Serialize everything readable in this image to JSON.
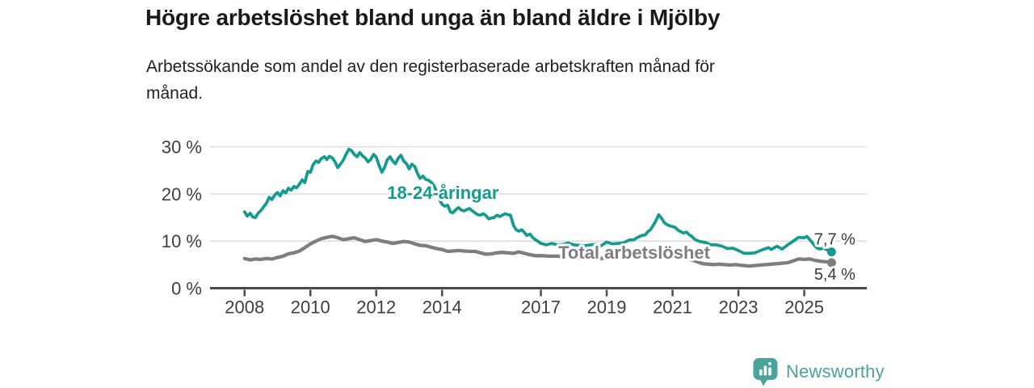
{
  "chart_data": {
    "type": "line",
    "title": "Högre arbetslöshet bland unga än bland äldre i Mjölby",
    "subtitle_lines": [
      "Arbetssökande som andel av den registerbaserade arbetskraften månad för",
      "månad."
    ],
    "xlim": [
      2007.0,
      2026.9
    ],
    "ylim": [
      0,
      32
    ],
    "grid": true,
    "x_ticks": [
      2008,
      2010,
      2012,
      2014,
      2017,
      2019,
      2021,
      2023,
      2025
    ],
    "y_ticks": [
      {
        "value": 0,
        "label": "0 %"
      },
      {
        "value": 10,
        "label": "10 %"
      },
      {
        "value": 20,
        "label": "20 %"
      },
      {
        "value": 30,
        "label": "30 %"
      }
    ],
    "colors": {
      "axis": "#4a4a4a",
      "grid": "#dcdcdc",
      "tick_text": "#3f3f3f",
      "value_text": "#3a3a3a"
    },
    "series": [
      {
        "id": "total",
        "name": "Total arbetslöshet",
        "color": "#7e7e7e",
        "end_value_label": "5,4 %",
        "value_label_position": "below",
        "label_at": [
          2017.53,
          6.3
        ],
        "points": [
          [
            2008.0,
            6.3
          ],
          [
            2008.17,
            6.0
          ],
          [
            2008.33,
            6.2
          ],
          [
            2008.5,
            6.1
          ],
          [
            2008.67,
            6.3
          ],
          [
            2008.83,
            6.2
          ],
          [
            2009.0,
            6.5
          ],
          [
            2009.17,
            6.8
          ],
          [
            2009.33,
            7.3
          ],
          [
            2009.5,
            7.5
          ],
          [
            2009.67,
            7.9
          ],
          [
            2009.83,
            8.6
          ],
          [
            2010.0,
            9.4
          ],
          [
            2010.17,
            10.0
          ],
          [
            2010.33,
            10.5
          ],
          [
            2010.5,
            10.8
          ],
          [
            2010.67,
            11.0
          ],
          [
            2010.83,
            10.7
          ],
          [
            2011.0,
            10.3
          ],
          [
            2011.17,
            10.5
          ],
          [
            2011.33,
            10.7
          ],
          [
            2011.5,
            10.3
          ],
          [
            2011.67,
            9.9
          ],
          [
            2011.83,
            10.1
          ],
          [
            2012.0,
            10.3
          ],
          [
            2012.17,
            10.0
          ],
          [
            2012.33,
            9.8
          ],
          [
            2012.5,
            9.5
          ],
          [
            2012.67,
            9.7
          ],
          [
            2012.83,
            9.9
          ],
          [
            2013.0,
            9.8
          ],
          [
            2013.17,
            9.4
          ],
          [
            2013.33,
            9.1
          ],
          [
            2013.5,
            9.0
          ],
          [
            2013.67,
            8.7
          ],
          [
            2013.83,
            8.4
          ],
          [
            2014.0,
            8.2
          ],
          [
            2014.17,
            7.8
          ],
          [
            2014.33,
            7.9
          ],
          [
            2014.5,
            8.0
          ],
          [
            2014.67,
            7.9
          ],
          [
            2014.83,
            7.8
          ],
          [
            2015.0,
            7.8
          ],
          [
            2015.17,
            7.5
          ],
          [
            2015.33,
            7.2
          ],
          [
            2015.5,
            7.3
          ],
          [
            2015.67,
            7.5
          ],
          [
            2015.83,
            7.6
          ],
          [
            2016.0,
            7.5
          ],
          [
            2016.17,
            7.4
          ],
          [
            2016.33,
            7.7
          ],
          [
            2016.5,
            7.4
          ],
          [
            2016.67,
            7.1
          ],
          [
            2016.83,
            6.9
          ],
          [
            2017.0,
            6.9
          ],
          [
            2017.25,
            6.8
          ],
          [
            2017.5,
            6.8
          ],
          [
            2017.75,
            6.6
          ],
          [
            2018.0,
            6.5
          ],
          [
            2018.25,
            6.3
          ],
          [
            2018.5,
            6.2
          ],
          [
            2018.75,
            6.3
          ],
          [
            2019.0,
            6.4
          ],
          [
            2019.25,
            6.3
          ],
          [
            2019.5,
            6.4
          ],
          [
            2019.75,
            6.5
          ],
          [
            2020.0,
            6.8
          ],
          [
            2020.25,
            7.3
          ],
          [
            2020.5,
            7.8
          ],
          [
            2020.75,
            7.6
          ],
          [
            2021.0,
            7.3
          ],
          [
            2021.25,
            6.8
          ],
          [
            2021.5,
            6.2
          ],
          [
            2021.75,
            5.6
          ],
          [
            2021.92,
            5.2
          ],
          [
            2022.08,
            5.1
          ],
          [
            2022.25,
            5.0
          ],
          [
            2022.42,
            5.1
          ],
          [
            2022.58,
            5.0
          ],
          [
            2022.75,
            4.9
          ],
          [
            2022.92,
            5.0
          ],
          [
            2023.0,
            4.9
          ],
          [
            2023.17,
            4.8
          ],
          [
            2023.33,
            4.7
          ],
          [
            2023.5,
            4.8
          ],
          [
            2023.67,
            4.9
          ],
          [
            2023.83,
            5.0
          ],
          [
            2024.0,
            5.1
          ],
          [
            2024.17,
            5.2
          ],
          [
            2024.33,
            5.3
          ],
          [
            2024.5,
            5.4
          ],
          [
            2024.67,
            5.8
          ],
          [
            2024.83,
            6.2
          ],
          [
            2025.0,
            6.1
          ],
          [
            2025.17,
            6.2
          ],
          [
            2025.33,
            5.9
          ],
          [
            2025.5,
            5.7
          ],
          [
            2025.67,
            5.6
          ],
          [
            2025.83,
            5.4
          ]
        ]
      },
      {
        "id": "youth",
        "name": "18-24-åringar",
        "color": "#129b8e",
        "end_value_label": "7,7 %",
        "value_label_position": "above",
        "label_at": [
          2012.33,
          19.0
        ],
        "points": [
          [
            2008.0,
            16.2
          ],
          [
            2008.08,
            15.3
          ],
          [
            2008.17,
            15.9
          ],
          [
            2008.25,
            15.1
          ],
          [
            2008.33,
            15.0
          ],
          [
            2008.42,
            16.0
          ],
          [
            2008.5,
            16.5
          ],
          [
            2008.58,
            17.3
          ],
          [
            2008.67,
            18.1
          ],
          [
            2008.75,
            19.3
          ],
          [
            2008.83,
            18.8
          ],
          [
            2008.92,
            19.8
          ],
          [
            2009.0,
            20.3
          ],
          [
            2009.08,
            19.6
          ],
          [
            2009.17,
            20.7
          ],
          [
            2009.25,
            20.2
          ],
          [
            2009.33,
            21.2
          ],
          [
            2009.42,
            20.8
          ],
          [
            2009.5,
            21.6
          ],
          [
            2009.58,
            21.3
          ],
          [
            2009.67,
            22.1
          ],
          [
            2009.75,
            23.0
          ],
          [
            2009.83,
            22.4
          ],
          [
            2009.92,
            24.8
          ],
          [
            2010.0,
            24.6
          ],
          [
            2010.08,
            26.2
          ],
          [
            2010.17,
            27.0
          ],
          [
            2010.25,
            26.7
          ],
          [
            2010.33,
            27.5
          ],
          [
            2010.42,
            27.9
          ],
          [
            2010.5,
            27.3
          ],
          [
            2010.58,
            28.0
          ],
          [
            2010.67,
            27.6
          ],
          [
            2010.75,
            26.8
          ],
          [
            2010.83,
            25.6
          ],
          [
            2010.92,
            26.4
          ],
          [
            2011.0,
            27.2
          ],
          [
            2011.08,
            28.4
          ],
          [
            2011.17,
            29.5
          ],
          [
            2011.25,
            29.2
          ],
          [
            2011.33,
            28.4
          ],
          [
            2011.42,
            27.9
          ],
          [
            2011.5,
            28.8
          ],
          [
            2011.58,
            28.1
          ],
          [
            2011.67,
            27.6
          ],
          [
            2011.75,
            26.8
          ],
          [
            2011.83,
            27.3
          ],
          [
            2011.92,
            28.4
          ],
          [
            2012.0,
            27.8
          ],
          [
            2012.08,
            26.2
          ],
          [
            2012.17,
            24.6
          ],
          [
            2012.25,
            25.6
          ],
          [
            2012.33,
            27.2
          ],
          [
            2012.42,
            27.9
          ],
          [
            2012.5,
            27.0
          ],
          [
            2012.58,
            26.4
          ],
          [
            2012.67,
            27.6
          ],
          [
            2012.75,
            28.2
          ],
          [
            2012.83,
            27.0
          ],
          [
            2012.92,
            26.4
          ],
          [
            2013.0,
            25.3
          ],
          [
            2013.08,
            26.3
          ],
          [
            2013.17,
            25.8
          ],
          [
            2013.25,
            24.4
          ],
          [
            2013.33,
            23.3
          ],
          [
            2013.42,
            23.8
          ],
          [
            2013.5,
            23.1
          ],
          [
            2013.58,
            22.9
          ],
          [
            2013.67,
            22.5
          ],
          [
            2013.75,
            21.8
          ],
          [
            2013.83,
            20.5
          ],
          [
            2013.92,
            18.8
          ],
          [
            2014.0,
            17.8
          ],
          [
            2014.08,
            17.4
          ],
          [
            2014.17,
            17.6
          ],
          [
            2014.25,
            16.2
          ],
          [
            2014.33,
            16.0
          ],
          [
            2014.42,
            16.7
          ],
          [
            2014.5,
            17.1
          ],
          [
            2014.58,
            16.6
          ],
          [
            2014.67,
            16.4
          ],
          [
            2014.75,
            16.7
          ],
          [
            2014.83,
            16.9
          ],
          [
            2014.92,
            16.4
          ],
          [
            2015.0,
            16.0
          ],
          [
            2015.08,
            15.6
          ],
          [
            2015.17,
            15.5
          ],
          [
            2015.25,
            15.8
          ],
          [
            2015.33,
            15.4
          ],
          [
            2015.42,
            14.7
          ],
          [
            2015.5,
            14.9
          ],
          [
            2015.58,
            15.0
          ],
          [
            2015.67,
            15.5
          ],
          [
            2015.75,
            15.2
          ],
          [
            2015.83,
            15.5
          ],
          [
            2015.92,
            15.8
          ],
          [
            2016.0,
            15.6
          ],
          [
            2016.08,
            15.5
          ],
          [
            2016.17,
            13.3
          ],
          [
            2016.25,
            12.4
          ],
          [
            2016.33,
            12.1
          ],
          [
            2016.42,
            12.4
          ],
          [
            2016.5,
            11.8
          ],
          [
            2016.58,
            11.2
          ],
          [
            2016.67,
            11.5
          ],
          [
            2016.75,
            10.8
          ],
          [
            2016.83,
            10.3
          ],
          [
            2016.92,
            9.9
          ],
          [
            2017.0,
            9.5
          ],
          [
            2017.17,
            9.2
          ],
          [
            2017.33,
            9.5
          ],
          [
            2017.5,
            9.2
          ],
          [
            2017.67,
            9.3
          ],
          [
            2017.83,
            9.6
          ],
          [
            2018.0,
            9.2
          ],
          [
            2018.17,
            9.1
          ],
          [
            2018.33,
            9.0
          ],
          [
            2018.5,
            9.2
          ],
          [
            2018.67,
            9.3
          ],
          [
            2018.83,
            9.0
          ],
          [
            2019.0,
            9.8
          ],
          [
            2019.17,
            9.4
          ],
          [
            2019.33,
            9.5
          ],
          [
            2019.5,
            9.6
          ],
          [
            2019.67,
            10.2
          ],
          [
            2019.83,
            10.3
          ],
          [
            2019.92,
            10.7
          ],
          [
            2020.0,
            11.0
          ],
          [
            2020.08,
            11.2
          ],
          [
            2020.17,
            11.3
          ],
          [
            2020.25,
            12.0
          ],
          [
            2020.33,
            12.4
          ],
          [
            2020.42,
            13.4
          ],
          [
            2020.5,
            14.4
          ],
          [
            2020.58,
            15.6
          ],
          [
            2020.67,
            14.8
          ],
          [
            2020.75,
            13.9
          ],
          [
            2020.83,
            13.5
          ],
          [
            2020.92,
            13.2
          ],
          [
            2021.0,
            13.1
          ],
          [
            2021.08,
            12.9
          ],
          [
            2021.17,
            12.3
          ],
          [
            2021.25,
            12.0
          ],
          [
            2021.33,
            11.7
          ],
          [
            2021.42,
            11.9
          ],
          [
            2021.5,
            11.4
          ],
          [
            2021.58,
            11.0
          ],
          [
            2021.67,
            10.4
          ],
          [
            2021.75,
            10.1
          ],
          [
            2021.83,
            9.9
          ],
          [
            2021.92,
            9.8
          ],
          [
            2022.0,
            9.7
          ],
          [
            2022.17,
            9.2
          ],
          [
            2022.33,
            9.2
          ],
          [
            2022.5,
            8.9
          ],
          [
            2022.67,
            8.4
          ],
          [
            2022.83,
            8.5
          ],
          [
            2023.0,
            8.0
          ],
          [
            2023.17,
            7.4
          ],
          [
            2023.33,
            7.4
          ],
          [
            2023.5,
            7.5
          ],
          [
            2023.67,
            8.0
          ],
          [
            2023.83,
            8.4
          ],
          [
            2023.92,
            8.6
          ],
          [
            2024.0,
            8.2
          ],
          [
            2024.17,
            8.9
          ],
          [
            2024.33,
            8.3
          ],
          [
            2024.5,
            9.2
          ],
          [
            2024.67,
            10.0
          ],
          [
            2024.83,
            10.8
          ],
          [
            2025.0,
            10.7
          ],
          [
            2025.08,
            11.0
          ],
          [
            2025.17,
            10.3
          ],
          [
            2025.25,
            9.6
          ],
          [
            2025.33,
            8.9
          ],
          [
            2025.42,
            8.4
          ],
          [
            2025.5,
            8.3
          ],
          [
            2025.58,
            8.6
          ],
          [
            2025.67,
            8.2
          ],
          [
            2025.75,
            7.9
          ],
          [
            2025.83,
            7.7
          ]
        ]
      }
    ]
  },
  "logo": {
    "text": "Newsworthy",
    "color": "#4ba29a",
    "icon_color": "#4ca39b"
  }
}
